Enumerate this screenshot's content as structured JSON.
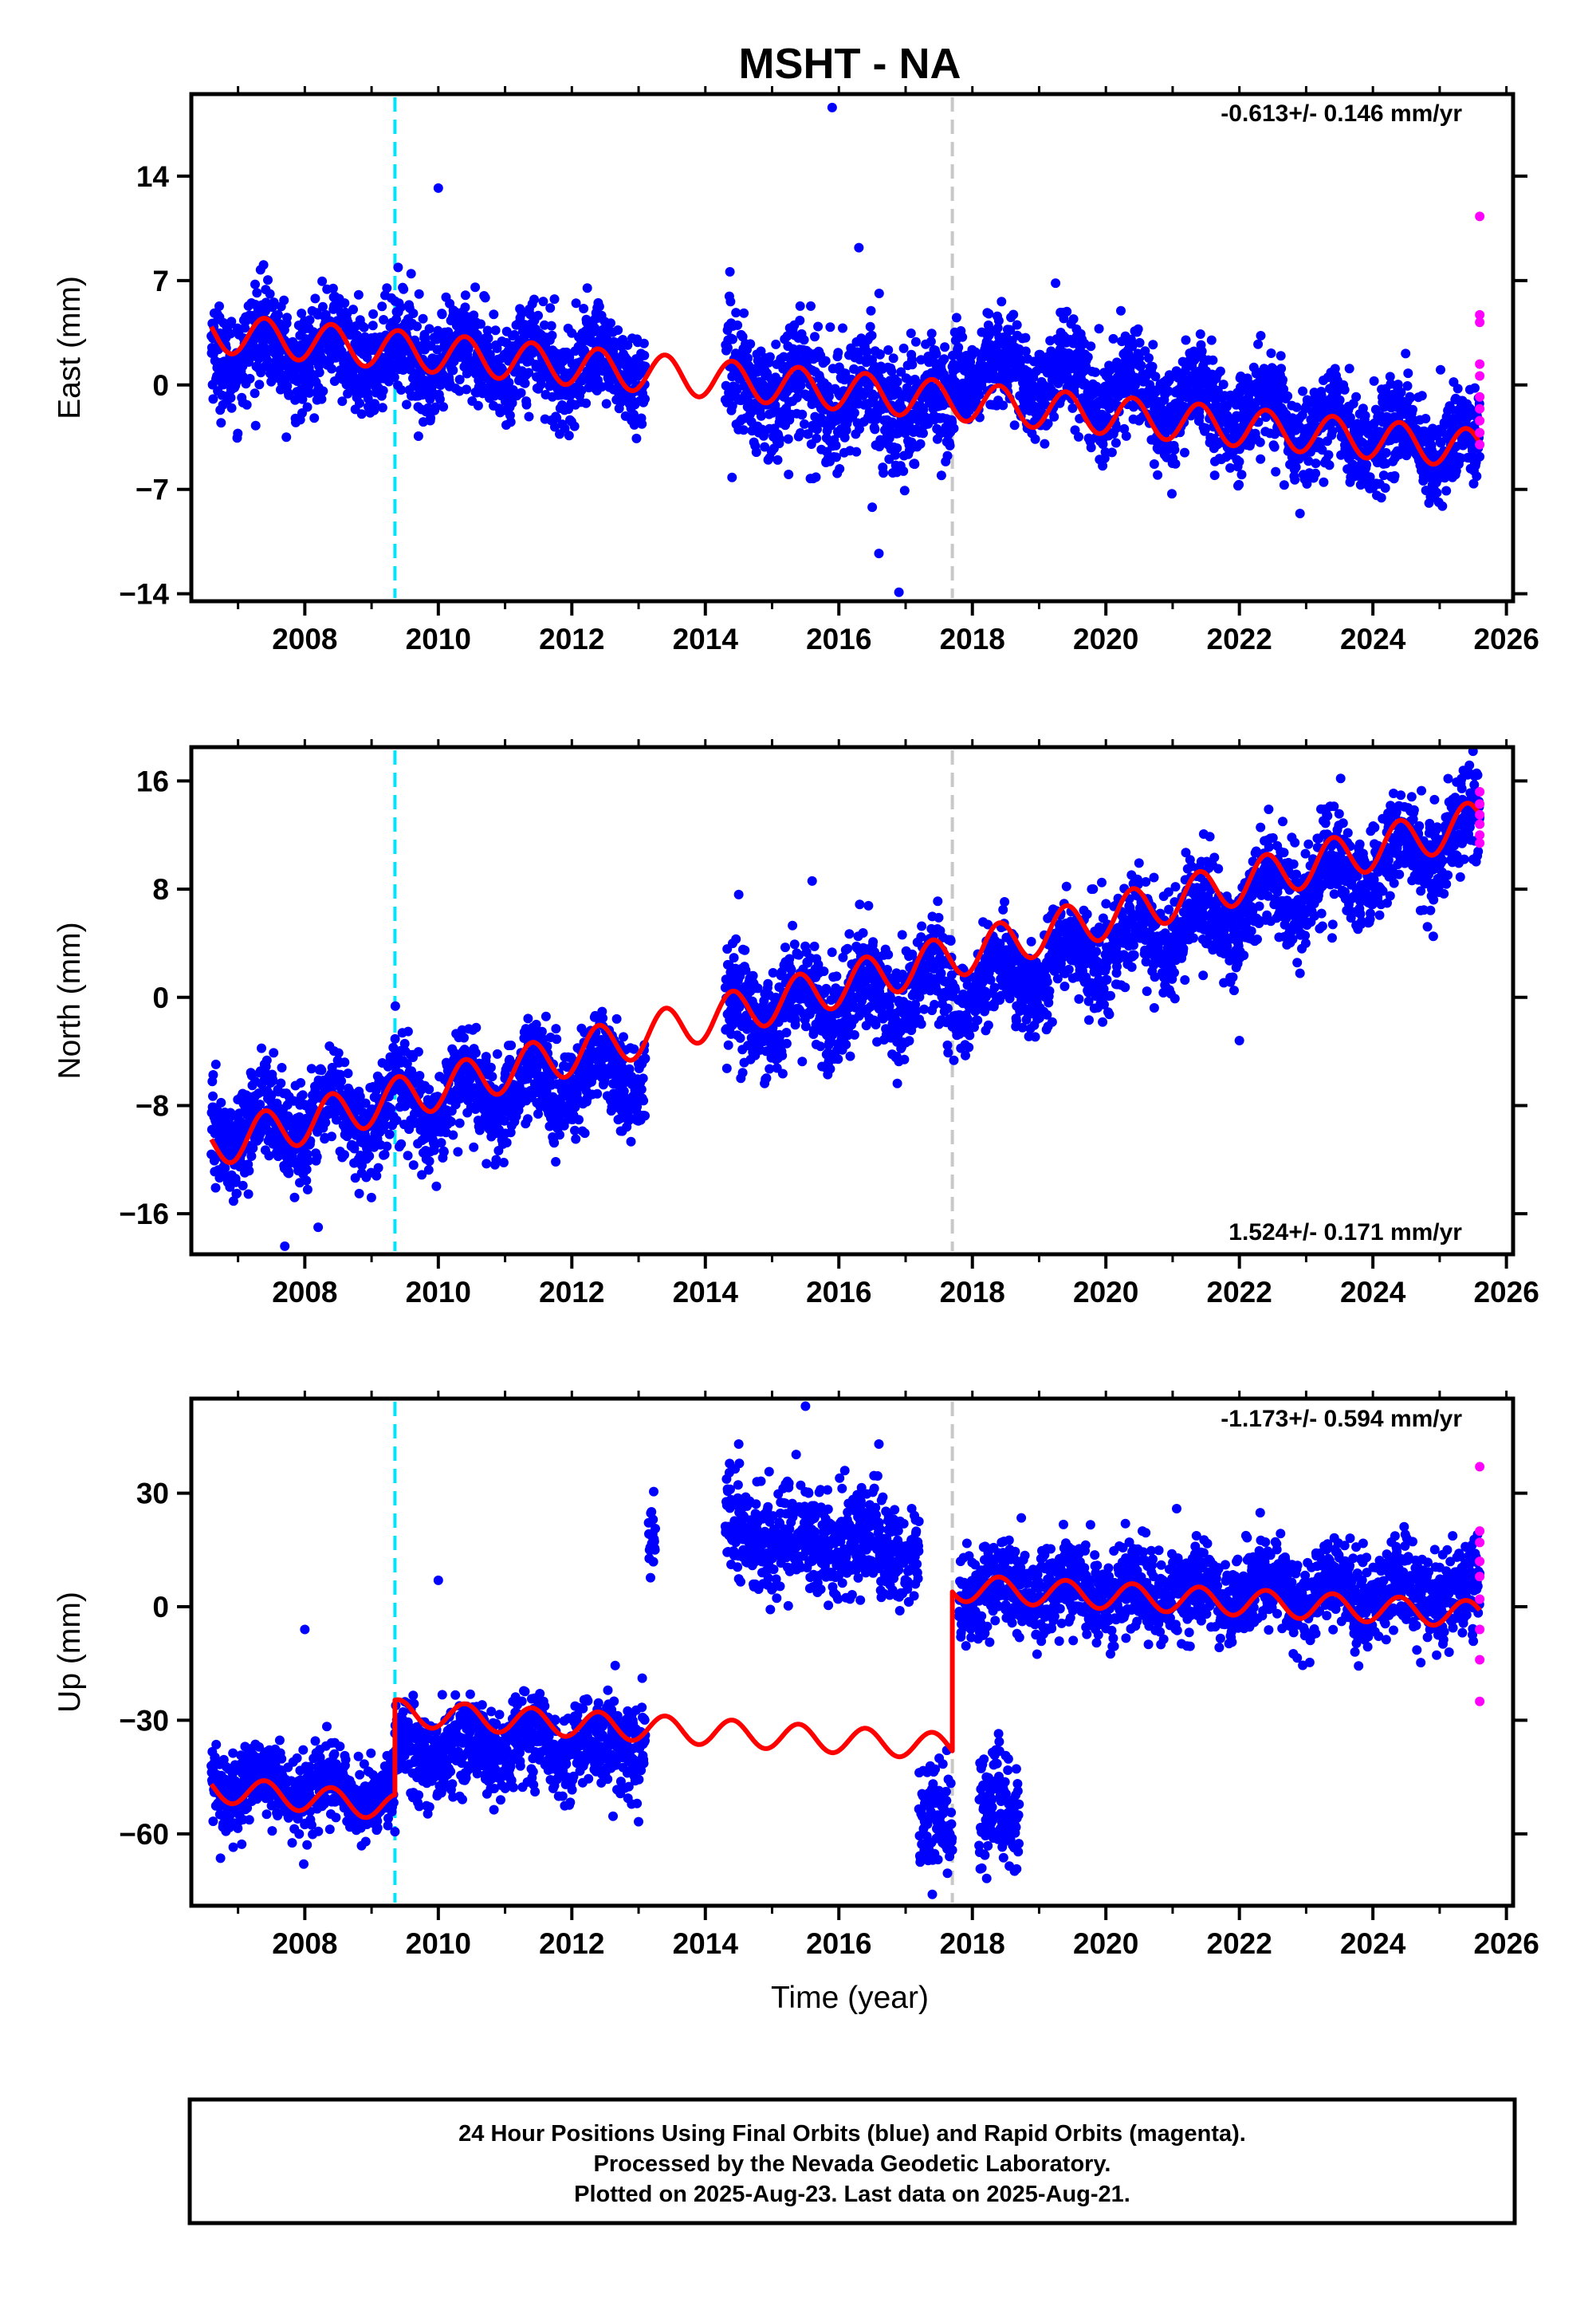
{
  "title": "MSHT - NA",
  "footer": {
    "line1": "24 Hour Positions Using Final Orbits (blue) and Rapid Orbits (magenta).",
    "line2": "Processed by the Nevada Geodetic Laboratory.",
    "line3": "Plotted on 2025-Aug-23. Last data on 2025-Aug-21."
  },
  "xlabel": "Time (year)",
  "colors": {
    "final": "#0000ff",
    "rapid": "#ff00ff",
    "model": "#ff0000",
    "event_antenna": "#00e5ff",
    "event_other": "#c8c8c8"
  },
  "chart_data": [
    {
      "type": "scatter",
      "component": "east",
      "ylabel": "East (mm)",
      "rate": "-0.613+/- 0.146 mm/yr",
      "xlim": [
        2006.3,
        2026.1
      ],
      "ylim": [
        -14.5,
        19.5
      ],
      "xticks": [
        "2008",
        "2010",
        "2012",
        "2014",
        "2016",
        "2018",
        "2020",
        "2022",
        "2024",
        "2026"
      ],
      "yticks": [
        "-14",
        "-7",
        "0",
        "7",
        "14"
      ],
      "ytick_values": [
        -14,
        -7,
        0,
        7,
        14
      ],
      "events": {
        "antenna": 2009.35,
        "other": 2017.7
      },
      "segments": [
        {
          "x0": 2006.6,
          "x1": 2013.1,
          "y0": 2.5,
          "y1": 1.2,
          "noise": 1.7
        },
        {
          "x0": 2014.3,
          "x1": 2017.7,
          "y0": 0.0,
          "y1": -1.5,
          "noise": 2.0
        },
        {
          "x0": 2017.7,
          "x1": 2025.6,
          "y0": 1.5,
          "y1": -4.5,
          "noise": 1.6
        }
      ],
      "model": {
        "x0": 2006.6,
        "x1": 2025.6,
        "y0": 3.5,
        "y1": -4.3,
        "amp": 1.3
      },
      "rapid_points": [
        [
          2025.6,
          11.3
        ],
        [
          2025.6,
          4.7
        ],
        [
          2025.6,
          4.2
        ],
        [
          2025.6,
          1.4
        ],
        [
          2025.6,
          0.6
        ],
        [
          2025.6,
          -0.8
        ],
        [
          2025.6,
          -1.6
        ],
        [
          2025.6,
          -2.4
        ],
        [
          2025.6,
          -3.2
        ],
        [
          2025.6,
          -4.0
        ]
      ],
      "outliers": [
        [
          2010.0,
          13.2
        ],
        [
          2015.9,
          18.6
        ],
        [
          2016.3,
          9.2
        ],
        [
          2016.6,
          -11.3
        ],
        [
          2016.9,
          -13.9
        ],
        [
          2016.5,
          -8.2
        ],
        [
          2014.4,
          -6.2
        ]
      ]
    },
    {
      "type": "scatter",
      "component": "north",
      "ylabel": "North (mm)",
      "rate": "1.524+/- 0.171 mm/yr",
      "xlim": [
        2006.3,
        2026.1
      ],
      "ylim": [
        -19,
        18.5
      ],
      "xticks": [
        "2008",
        "2010",
        "2012",
        "2014",
        "2016",
        "2018",
        "2020",
        "2022",
        "2024",
        "2026"
      ],
      "yticks": [
        "-16",
        "-8",
        "0",
        "8",
        "16"
      ],
      "ytick_values": [
        -16,
        -8,
        0,
        8,
        16
      ],
      "events": {
        "antenna": 2009.35,
        "other": 2017.7
      },
      "segments": [
        {
          "x0": 2006.6,
          "x1": 2013.1,
          "y0": -10.0,
          "y1": -5.5,
          "noise": 1.8
        },
        {
          "x0": 2014.3,
          "x1": 2017.7,
          "y0": -1.5,
          "y1": 1.0,
          "noise": 2.0
        },
        {
          "x0": 2017.7,
          "x1": 2025.6,
          "y0": 0.0,
          "y1": 12.5,
          "noise": 1.8
        }
      ],
      "model": {
        "x0": 2006.6,
        "x1": 2025.6,
        "y0": -11.0,
        "y1": 13.0,
        "amp": 1.6
      },
      "rapid_points": [
        [
          2025.6,
          15.2
        ],
        [
          2025.6,
          14.3
        ],
        [
          2025.6,
          13.5
        ],
        [
          2025.6,
          12.8
        ],
        [
          2025.6,
          12.0
        ],
        [
          2025.6,
          11.4
        ]
      ],
      "outliers": [
        [
          2007.7,
          -18.4
        ],
        [
          2008.2,
          -17.0
        ],
        [
          2014.5,
          7.6
        ],
        [
          2015.6,
          8.6
        ],
        [
          2022.0,
          -3.2
        ],
        [
          2025.5,
          18.2
        ]
      ]
    },
    {
      "type": "scatter",
      "component": "up",
      "ylabel": "Up (mm)",
      "rate": "-1.173+/- 0.594 mm/yr",
      "xlim": [
        2006.3,
        2026.1
      ],
      "ylim": [
        -79,
        55
      ],
      "xticks": [
        "2008",
        "2010",
        "2012",
        "2014",
        "2016",
        "2018",
        "2020",
        "2022",
        "2024",
        "2026"
      ],
      "yticks": [
        "-60",
        "-30",
        "0",
        "30"
      ],
      "ytick_values": [
        -60,
        -30,
        0,
        30
      ],
      "events": {
        "antenna": 2009.35,
        "other": 2017.7
      },
      "segments": [
        {
          "x0": 2006.6,
          "x1": 2009.35,
          "y0": -47.0,
          "y1": -50.0,
          "noise": 5.0
        },
        {
          "x0": 2009.35,
          "x1": 2013.1,
          "y0": -38.0,
          "y1": -36.0,
          "noise": 6.0
        },
        {
          "x0": 2013.15,
          "x1": 2013.25,
          "y0": 17.0,
          "y1": 17.0,
          "noise": 5.0
        },
        {
          "x0": 2014.3,
          "x1": 2017.2,
          "y0": 20.0,
          "y1": 15.0,
          "noise": 7.0
        },
        {
          "x0": 2017.2,
          "x1": 2017.7,
          "y0": -58.0,
          "y1": -58.0,
          "noise": 7.0
        },
        {
          "x0": 2018.1,
          "x1": 2018.7,
          "y0": -55.0,
          "y1": -55.0,
          "noise": 8.0
        },
        {
          "x0": 2017.8,
          "x1": 2025.6,
          "y0": 5.0,
          "y1": 3.0,
          "noise": 6.0
        }
      ],
      "model_pieces": [
        {
          "x0": 2006.6,
          "x1": 2009.35,
          "y0": -48.0,
          "y1": -53.0,
          "amp": 3.5
        },
        {
          "x0": 2009.35,
          "x1": 2017.7,
          "y0": -28.0,
          "y1": -37.0,
          "amp": 3.5
        },
        {
          "x0": 2017.7,
          "x1": 2025.6,
          "y0": 5.0,
          "y1": -2.0,
          "amp": 3.5
        }
      ],
      "rapid_points": [
        [
          2025.6,
          37.0
        ],
        [
          2025.6,
          20.0
        ],
        [
          2025.6,
          17.0
        ],
        [
          2025.6,
          12.0
        ],
        [
          2025.6,
          8.0
        ],
        [
          2025.6,
          2.0
        ],
        [
          2025.6,
          -6.0
        ],
        [
          2025.6,
          -14.0
        ],
        [
          2025.6,
          -25.0
        ]
      ],
      "outliers": [
        [
          2008.0,
          -6.0
        ],
        [
          2010.0,
          7.0
        ],
        [
          2014.5,
          43.0
        ],
        [
          2015.5,
          53.0
        ],
        [
          2016.6,
          43.0
        ],
        [
          2017.4,
          -76.0
        ]
      ]
    }
  ]
}
